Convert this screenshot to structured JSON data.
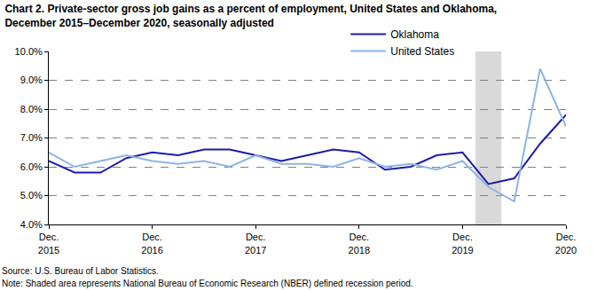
{
  "chart_data": {
    "type": "line",
    "title": "Chart 2. Private-sector gross job gains as a percent of employment, United States and Oklahoma,\nDecember 2015–December 2020, seasonally adjusted",
    "categories": [
      "Dec.\n2015",
      null,
      null,
      null,
      "Dec.\n2016",
      null,
      null,
      null,
      "Dec.\n2017",
      null,
      null,
      null,
      "Dec.\n2018",
      null,
      null,
      null,
      "Dec.\n2019",
      null,
      null,
      null,
      "Dec.\n2020"
    ],
    "series": [
      {
        "name": "Oklahoma",
        "color": "#1c1ca8",
        "values": [
          6.2,
          5.8,
          5.8,
          6.3,
          6.5,
          6.4,
          6.6,
          6.6,
          6.4,
          6.2,
          6.4,
          6.6,
          6.5,
          5.9,
          6.0,
          6.4,
          6.5,
          5.4,
          5.6,
          6.8,
          7.8
        ]
      },
      {
        "name": "United States",
        "color": "#8db4e3",
        "values": [
          6.5,
          6.0,
          6.2,
          6.4,
          6.2,
          6.1,
          6.2,
          6.0,
          6.4,
          6.1,
          6.1,
          6.0,
          6.3,
          6.0,
          6.1,
          5.9,
          6.2,
          5.3,
          4.8,
          9.4,
          7.4
        ]
      }
    ],
    "ylim": [
      4.0,
      10.0
    ],
    "yticks": [
      {
        "value": 4.0,
        "label": "4.0%"
      },
      {
        "value": 5.0,
        "label": "5.0%"
      },
      {
        "value": 6.0,
        "label": "6.0%"
      },
      {
        "value": 7.0,
        "label": "7.0%"
      },
      {
        "value": 8.0,
        "label": "8.0%"
      },
      {
        "value": 9.0,
        "label": "9.0%"
      },
      {
        "value": 10.0,
        "label": "10.0%"
      }
    ],
    "grid": true,
    "legend": "top",
    "shaded": {
      "from": 16.5,
      "to": 17.5,
      "color": "#d9d9d9"
    },
    "annotations": [
      "Source: U.S. Bureau of Labor Statistics.",
      "Note: Shaded area represents National Bureau of Economic Research (NBER) defined recession period."
    ]
  }
}
